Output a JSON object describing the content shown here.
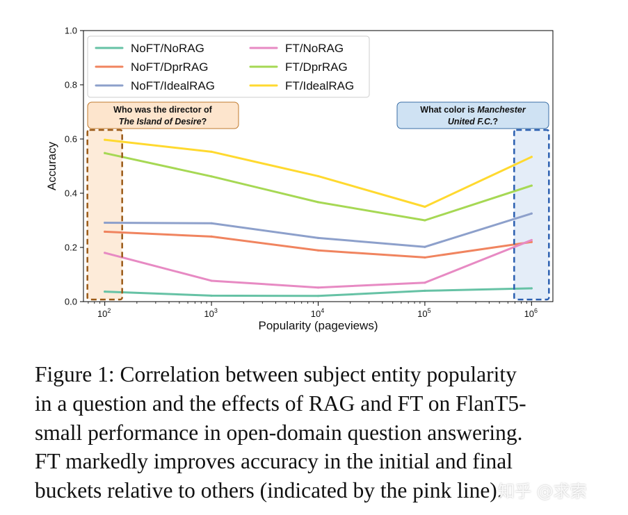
{
  "chart_data": {
    "type": "line",
    "xlabel": "Popularity (pageviews)",
    "ylabel": "Accuracy",
    "ylim": [
      0.0,
      1.0
    ],
    "yticks": [
      "0.0",
      "0.2",
      "0.4",
      "0.6",
      "0.8",
      "1.0"
    ],
    "x": [
      2,
      3,
      4,
      5,
      6
    ],
    "xtick_base": "10",
    "xtick_exponents": [
      "2",
      "3",
      "4",
      "5",
      "6"
    ],
    "legend_position": "top-left",
    "series": [
      {
        "name": "NoFT/NoRAG",
        "color": "#66c2a5",
        "values": [
          0.037,
          0.022,
          0.021,
          0.04,
          0.049
        ]
      },
      {
        "name": "NoFT/DprRAG",
        "color": "#f0845f",
        "values": [
          0.258,
          0.24,
          0.189,
          0.163,
          0.22
        ]
      },
      {
        "name": "NoFT/IdealRAG",
        "color": "#8da0cb",
        "values": [
          0.291,
          0.289,
          0.235,
          0.202,
          0.325
        ]
      },
      {
        "name": "FT/NoRAG",
        "color": "#e78ac3",
        "values": [
          0.18,
          0.077,
          0.052,
          0.07,
          0.227
        ]
      },
      {
        "name": "FT/DprRAG",
        "color": "#a6d854",
        "values": [
          0.548,
          0.462,
          0.367,
          0.3,
          0.428
        ]
      },
      {
        "name": "FT/IdealRAG",
        "color": "#ffd92f",
        "values": [
          0.597,
          0.553,
          0.463,
          0.35,
          0.534
        ]
      }
    ],
    "annotations": [
      {
        "id": "left",
        "line1": "Who was the director of",
        "line2_italic": "The Island of Desire",
        "line2_end": "?",
        "fill": "#fde5cd",
        "stroke": "#c07a2e",
        "dash_color": "#9b5a16",
        "highlight_fill": "#fdebd9",
        "x_center": 2
      },
      {
        "id": "right",
        "line1_start": "What color is ",
        "line1_italic": "Manchester",
        "line2_italic": "United F.C.",
        "line2_end": "?",
        "fill": "#cfe2f3",
        "stroke": "#3a6ea5",
        "dash_color": "#2b5fb0",
        "highlight_fill": "#e4edf8",
        "x_center": 6
      }
    ]
  },
  "caption": {
    "lines": [
      "Figure 1: Correlation between subject entity popularity",
      "in a question and the effects of RAG and FT on FlanT5-",
      "small performance in open-domain question answering.",
      "FT markedly improves accuracy in the initial and final",
      "buckets relative to others (indicated by the pink line)."
    ]
  },
  "watermark": "知乎 @求索"
}
